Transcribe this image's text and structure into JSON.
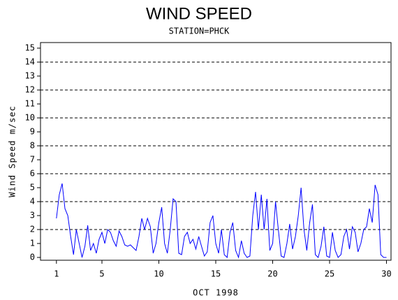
{
  "chart_data": {
    "type": "line",
    "title": "WIND SPEED",
    "subtitle": "STATION=PHCK",
    "x_label": "OCT 1998",
    "y_label": "Wind Speed m/sec",
    "xlim": [
      -0.4,
      30.4
    ],
    "xticks": [
      1,
      5,
      10,
      15,
      20,
      25,
      30
    ],
    "ylim": [
      -0.2,
      15.4
    ],
    "yticks": [
      0,
      1,
      2,
      3,
      4,
      5,
      6,
      7,
      8,
      9,
      10,
      11,
      12,
      13,
      14,
      15
    ],
    "grid_lines": [
      2,
      4,
      6,
      8,
      10,
      12,
      14
    ],
    "series": [
      {
        "color": "#0000ff",
        "x": [
          1.0,
          1.25,
          1.5,
          1.75,
          2.0,
          2.25,
          2.5,
          2.75,
          3.0,
          3.25,
          3.5,
          3.75,
          4.0,
          4.25,
          4.5,
          4.75,
          5.0,
          5.25,
          5.5,
          5.75,
          6.0,
          6.25,
          6.5,
          6.75,
          7.0,
          7.25,
          7.5,
          7.75,
          8.0,
          8.25,
          8.5,
          8.75,
          9.0,
          9.25,
          9.5,
          9.75,
          10.0,
          10.25,
          10.5,
          10.75,
          11.0,
          11.25,
          11.5,
          11.75,
          12.0,
          12.25,
          12.5,
          12.75,
          13.0,
          13.25,
          13.5,
          13.75,
          14.0,
          14.25,
          14.5,
          14.75,
          15.0,
          15.25,
          15.5,
          15.75,
          16.0,
          16.25,
          16.5,
          16.75,
          17.0,
          17.25,
          17.5,
          17.75,
          18.0,
          18.25,
          18.5,
          18.75,
          19.0,
          19.25,
          19.5,
          19.75,
          20.0,
          20.25,
          20.5,
          20.75,
          21.0,
          21.25,
          21.5,
          21.75,
          22.0,
          22.25,
          22.5,
          22.75,
          23.0,
          23.25,
          23.5,
          23.75,
          24.0,
          24.25,
          24.5,
          24.75,
          25.0,
          25.25,
          25.5,
          25.75,
          26.0,
          26.25,
          26.5,
          26.75,
          27.0,
          27.25,
          27.5,
          27.75,
          28.0,
          28.25,
          28.5,
          28.75,
          29.0,
          29.25,
          29.5,
          29.75,
          30.0
        ],
        "values": [
          2.8,
          4.5,
          5.3,
          3.5,
          3.0,
          1.5,
          0.2,
          2.0,
          1.0,
          0,
          0.8,
          2.3,
          0.5,
          1.0,
          0.3,
          1.3,
          1.8,
          1.0,
          2.0,
          1.8,
          1.2,
          0.8,
          1.9,
          1.5,
          0.9,
          0.8,
          0.9,
          0.7,
          0.5,
          1.5,
          2.8,
          2.0,
          2.8,
          2.2,
          0.3,
          1.0,
          2.5,
          3.6,
          1.0,
          0.3,
          2.0,
          4.2,
          4.0,
          0.3,
          0.2,
          1.5,
          1.8,
          1.0,
          1.3,
          0.6,
          1.5,
          0.8,
          0.1,
          0.4,
          2.5,
          3.0,
          1.0,
          0.3,
          2.0,
          0.2,
          0,
          1.8,
          2.5,
          0.5,
          0,
          1.2,
          0.3,
          0,
          0.1,
          3.0,
          4.7,
          2.0,
          4.5,
          2.0,
          4.2,
          0.5,
          1.0,
          4.0,
          2.0,
          0.1,
          0,
          1.0,
          2.4,
          0.6,
          1.5,
          3.0,
          5.0,
          2.0,
          0.5,
          2.5,
          3.8,
          0.2,
          0,
          0.8,
          2.2,
          0.1,
          0,
          1.8,
          0.5,
          0,
          0.2,
          1.5,
          2.0,
          0.6,
          2.2,
          1.8,
          0.4,
          1.0,
          2.0,
          2.2,
          3.5,
          2.5,
          5.2,
          4.5,
          0.2,
          0,
          0
        ]
      }
    ]
  }
}
